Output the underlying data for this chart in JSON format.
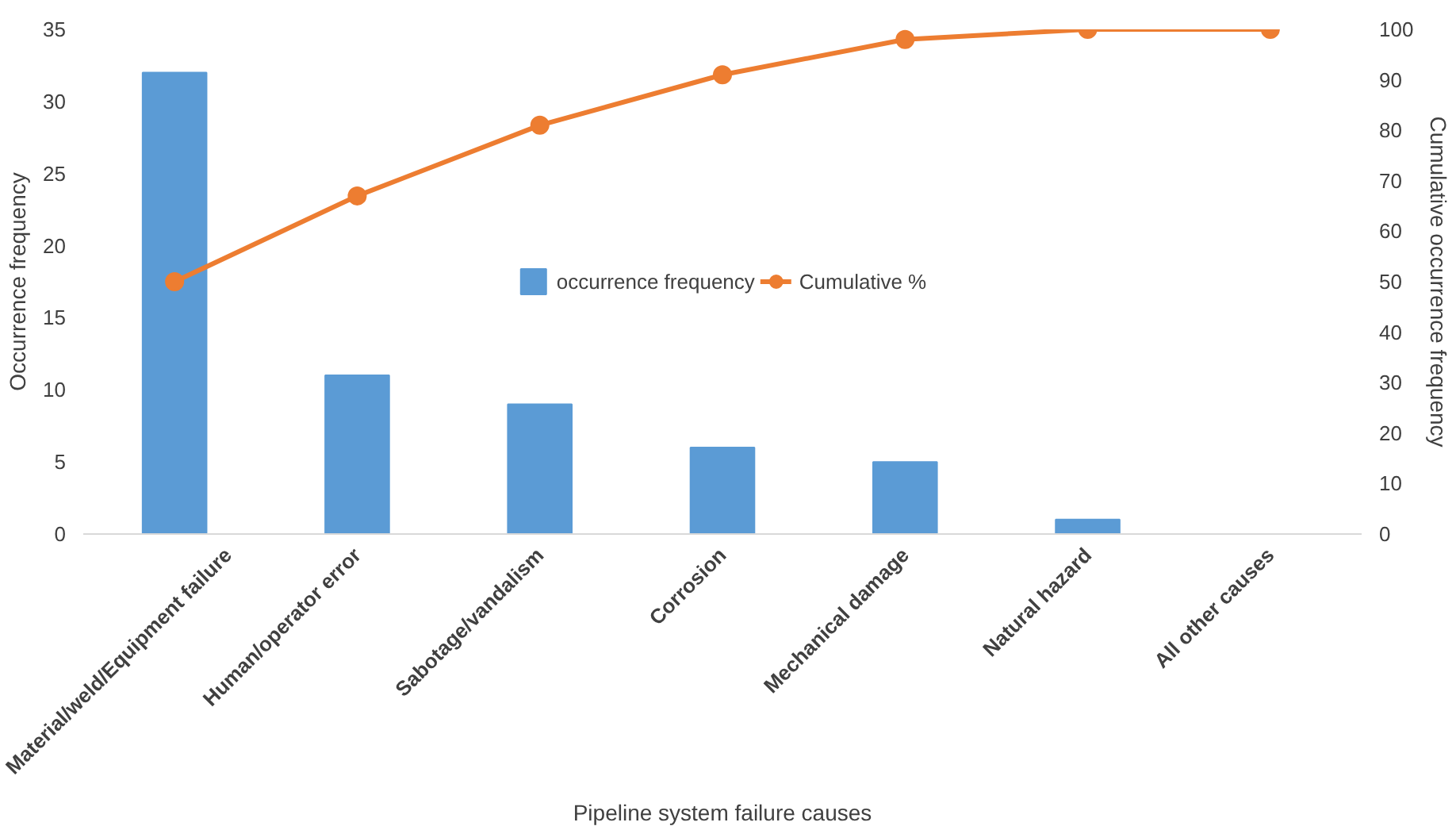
{
  "chart_data": {
    "type": "bar",
    "xlabel": "Pipeline system failure causes",
    "ylabel": "Occurrence frequency",
    "y2label": "Cumulative occurrence frequency",
    "categories": [
      "Material/weld/Equipment failure",
      "Human/operator error",
      "Sabotage/vandalism",
      "Corrosion",
      "Mechanical damage",
      "Natural hazard",
      "All other causes"
    ],
    "series": [
      {
        "name": "occurrence frequency",
        "color": "#5b9bd5",
        "values": [
          32,
          11,
          9,
          6,
          5,
          1,
          0
        ]
      },
      {
        "name": "Cumulative %",
        "type": "line",
        "axis": "y2",
        "color": "#ed7d31",
        "marker": "circle",
        "values": [
          50,
          67,
          81,
          91,
          98,
          100,
          100
        ]
      }
    ],
    "ylim": [
      0,
      35
    ],
    "yticks": [
      0,
      5,
      10,
      15,
      20,
      25,
      30,
      35
    ],
    "y2lim": [
      0,
      100
    ],
    "y2ticks": [
      0,
      10,
      20,
      30,
      40,
      50,
      60,
      70,
      80,
      90,
      100
    ],
    "grid": false,
    "legend": "center"
  }
}
